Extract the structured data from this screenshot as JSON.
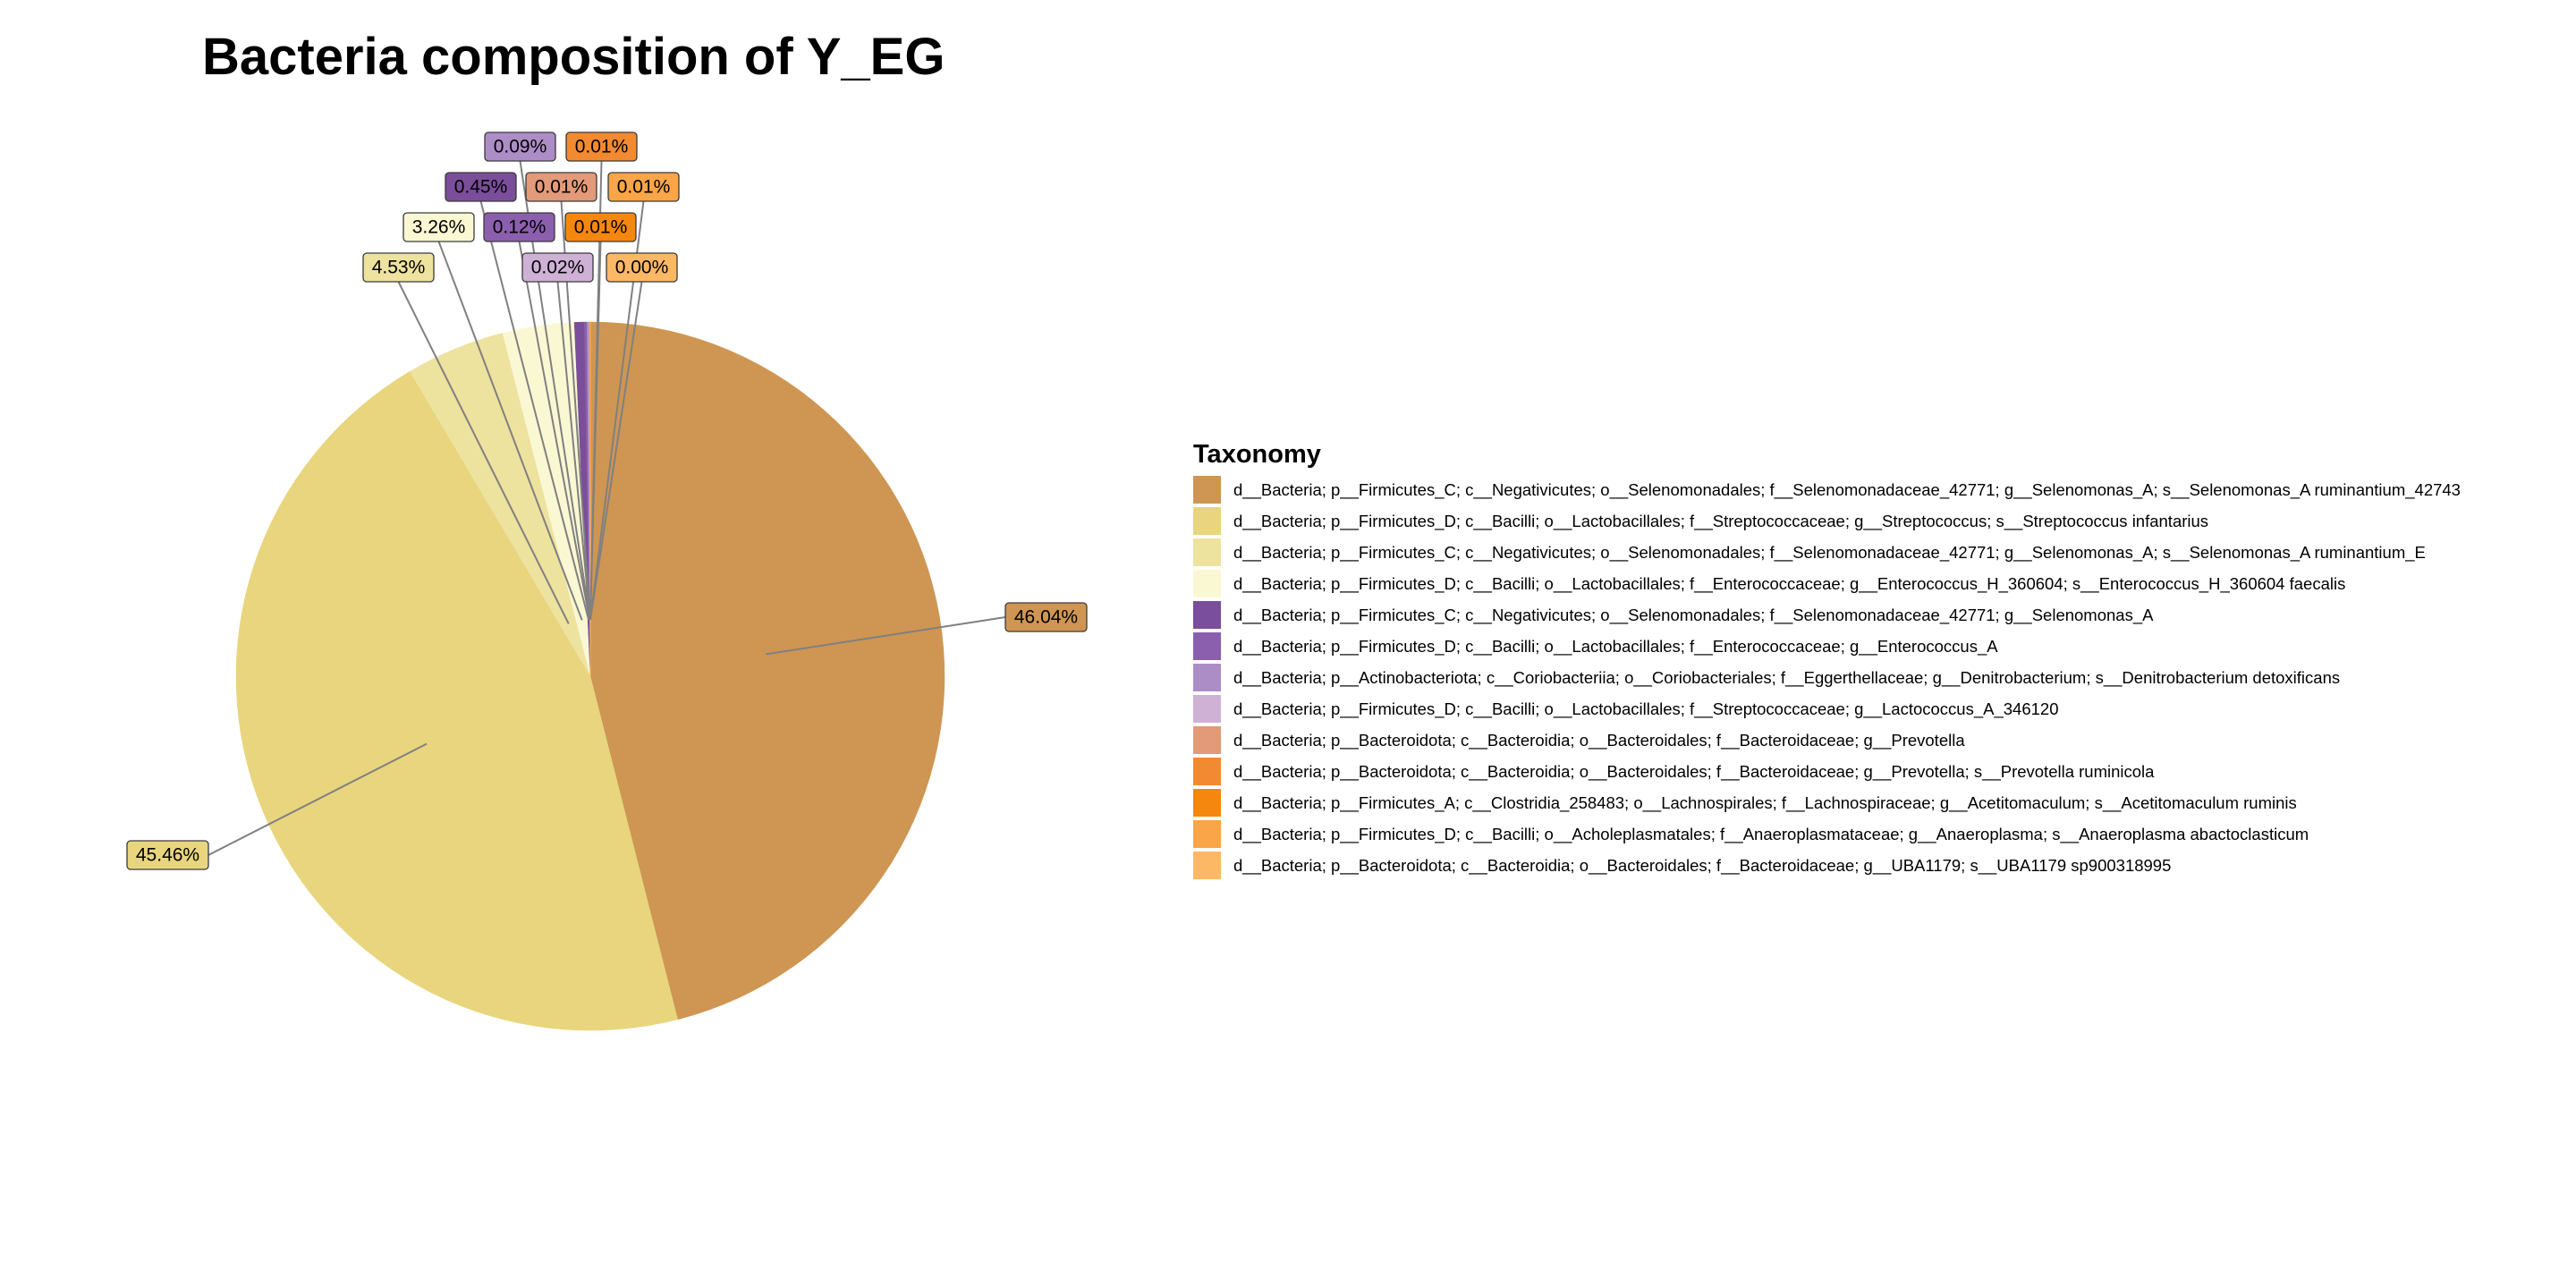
{
  "chart_data": {
    "type": "pie",
    "title": "Bacteria composition of Y_EG",
    "legend_title": "Taxonomy",
    "legend_position": "right",
    "slices": [
      {
        "label": "d__Bacteria; p__Firmicutes_C; c__Negativicutes; o__Selenomonadales; f__Selenomonadaceae_42771; g__Selenomonas_A; s__Selenomonas_A ruminantium_42743",
        "value": 46.04,
        "value_label": "46.04%",
        "color": "#CE9652"
      },
      {
        "label": "d__Bacteria; p__Firmicutes_D; c__Bacilli; o__Lactobacillales; f__Streptococcaceae; g__Streptococcus; s__Streptococcus infantarius",
        "value": 45.46,
        "value_label": "45.46%",
        "color": "#E8D57E"
      },
      {
        "label": "d__Bacteria; p__Firmicutes_C; c__Negativicutes; o__Selenomonadales; f__Selenomonadaceae_42771; g__Selenomonas_A; s__Selenomonas_A ruminantium_E",
        "value": 4.53,
        "value_label": "4.53%",
        "color": "#EEE29F"
      },
      {
        "label": "d__Bacteria; p__Firmicutes_D; c__Bacilli; o__Lactobacillales; f__Enterococcaceae; g__Enterococcus_H_360604; s__Enterococcus_H_360604 faecalis",
        "value": 3.26,
        "value_label": "3.26%",
        "color": "#FAF8D3"
      },
      {
        "label": "d__Bacteria; p__Firmicutes_C; c__Negativicutes; o__Selenomonadales; f__Selenomonadaceae_42771; g__Selenomonas_A",
        "value": 0.45,
        "value_label": "0.45%",
        "color": "#7A4E9A"
      },
      {
        "label": "d__Bacteria; p__Firmicutes_D; c__Bacilli; o__Lactobacillales; f__Enterococcaceae; g__Enterococcus_A",
        "value": 0.12,
        "value_label": "0.12%",
        "color": "#8B5FAD"
      },
      {
        "label": "d__Bacteria; p__Actinobacteriota; c__Coriobacteriia; o__Coriobacteriales; f__Eggerthellaceae; g__Denitrobacterium; s__Denitrobacterium detoxificans",
        "value": 0.09,
        "value_label": "0.09%",
        "color": "#AC8DC5"
      },
      {
        "label": "d__Bacteria; p__Firmicutes_D; c__Bacilli; o__Lactobacillales; f__Streptococcaceae; g__Lactococcus_A_346120",
        "value": 0.02,
        "value_label": "0.02%",
        "color": "#CFB1D6"
      },
      {
        "label": "d__Bacteria; p__Bacteroidota; c__Bacteroidia; o__Bacteroidales; f__Bacteroidaceae; g__Prevotella",
        "value": 0.01,
        "value_label": "0.01%",
        "color": "#E29A78"
      },
      {
        "label": "d__Bacteria; p__Bacteroidota; c__Bacteroidia; o__Bacteroidales; f__Bacteroidaceae; g__Prevotella; s__Prevotella ruminicola",
        "value": 0.01,
        "value_label": "0.01%",
        "color": "#F18A30"
      },
      {
        "label": "d__Bacteria; p__Firmicutes_A; c__Clostridia_258483; o__Lachnospirales; f__Lachnospiraceae; g__Acetitomaculum; s__Acetitomaculum ruminis",
        "value": 0.01,
        "value_label": "0.01%",
        "color": "#F5870F"
      },
      {
        "label": "d__Bacteria; p__Firmicutes_D; c__Bacilli; o__Acholeplasmatales; f__Anaeroplasmataceae; g__Anaeroplasma; s__Anaeroplasma abactoclasticum",
        "value": 0.01,
        "value_label": "0.01%",
        "color": "#F9A548"
      },
      {
        "label": "d__Bacteria; p__Bacteroidota; c__Bacteroidia; o__Bacteroidales; f__Bacteroidaceae; g__UBA1179; s__UBA1179 sp900318995",
        "value": 0.0,
        "value_label": "0.00%",
        "color": "#FDB866"
      }
    ]
  }
}
